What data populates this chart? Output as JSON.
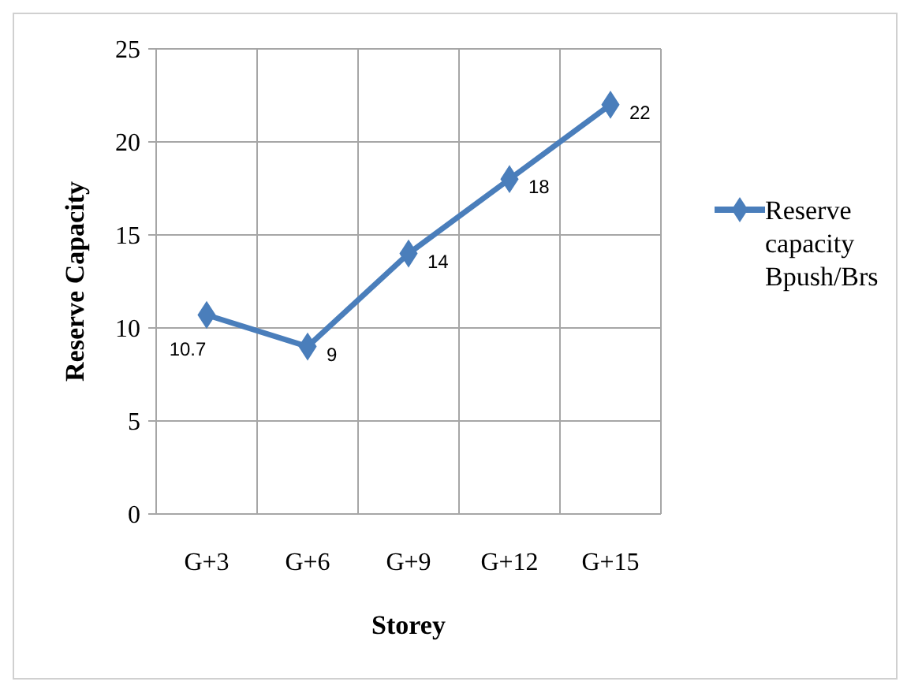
{
  "chart_data": {
    "type": "line",
    "xlabel": "Storey",
    "ylabel": "Reserve Capacity",
    "categories": [
      "G+3",
      "G+6",
      "G+9",
      "G+12",
      "G+15"
    ],
    "series": [
      {
        "name": "Reserve capacity Bpush/Brs",
        "color": "#4a7ebb",
        "values": [
          10.7,
          9,
          14,
          18,
          22
        ]
      }
    ],
    "ylim": [
      0,
      25
    ],
    "yticks": [
      0,
      5,
      10,
      15,
      20,
      25
    ],
    "grid": true,
    "legend": "right",
    "marker": "diamond",
    "line_style": "solid",
    "data_labels": true
  }
}
